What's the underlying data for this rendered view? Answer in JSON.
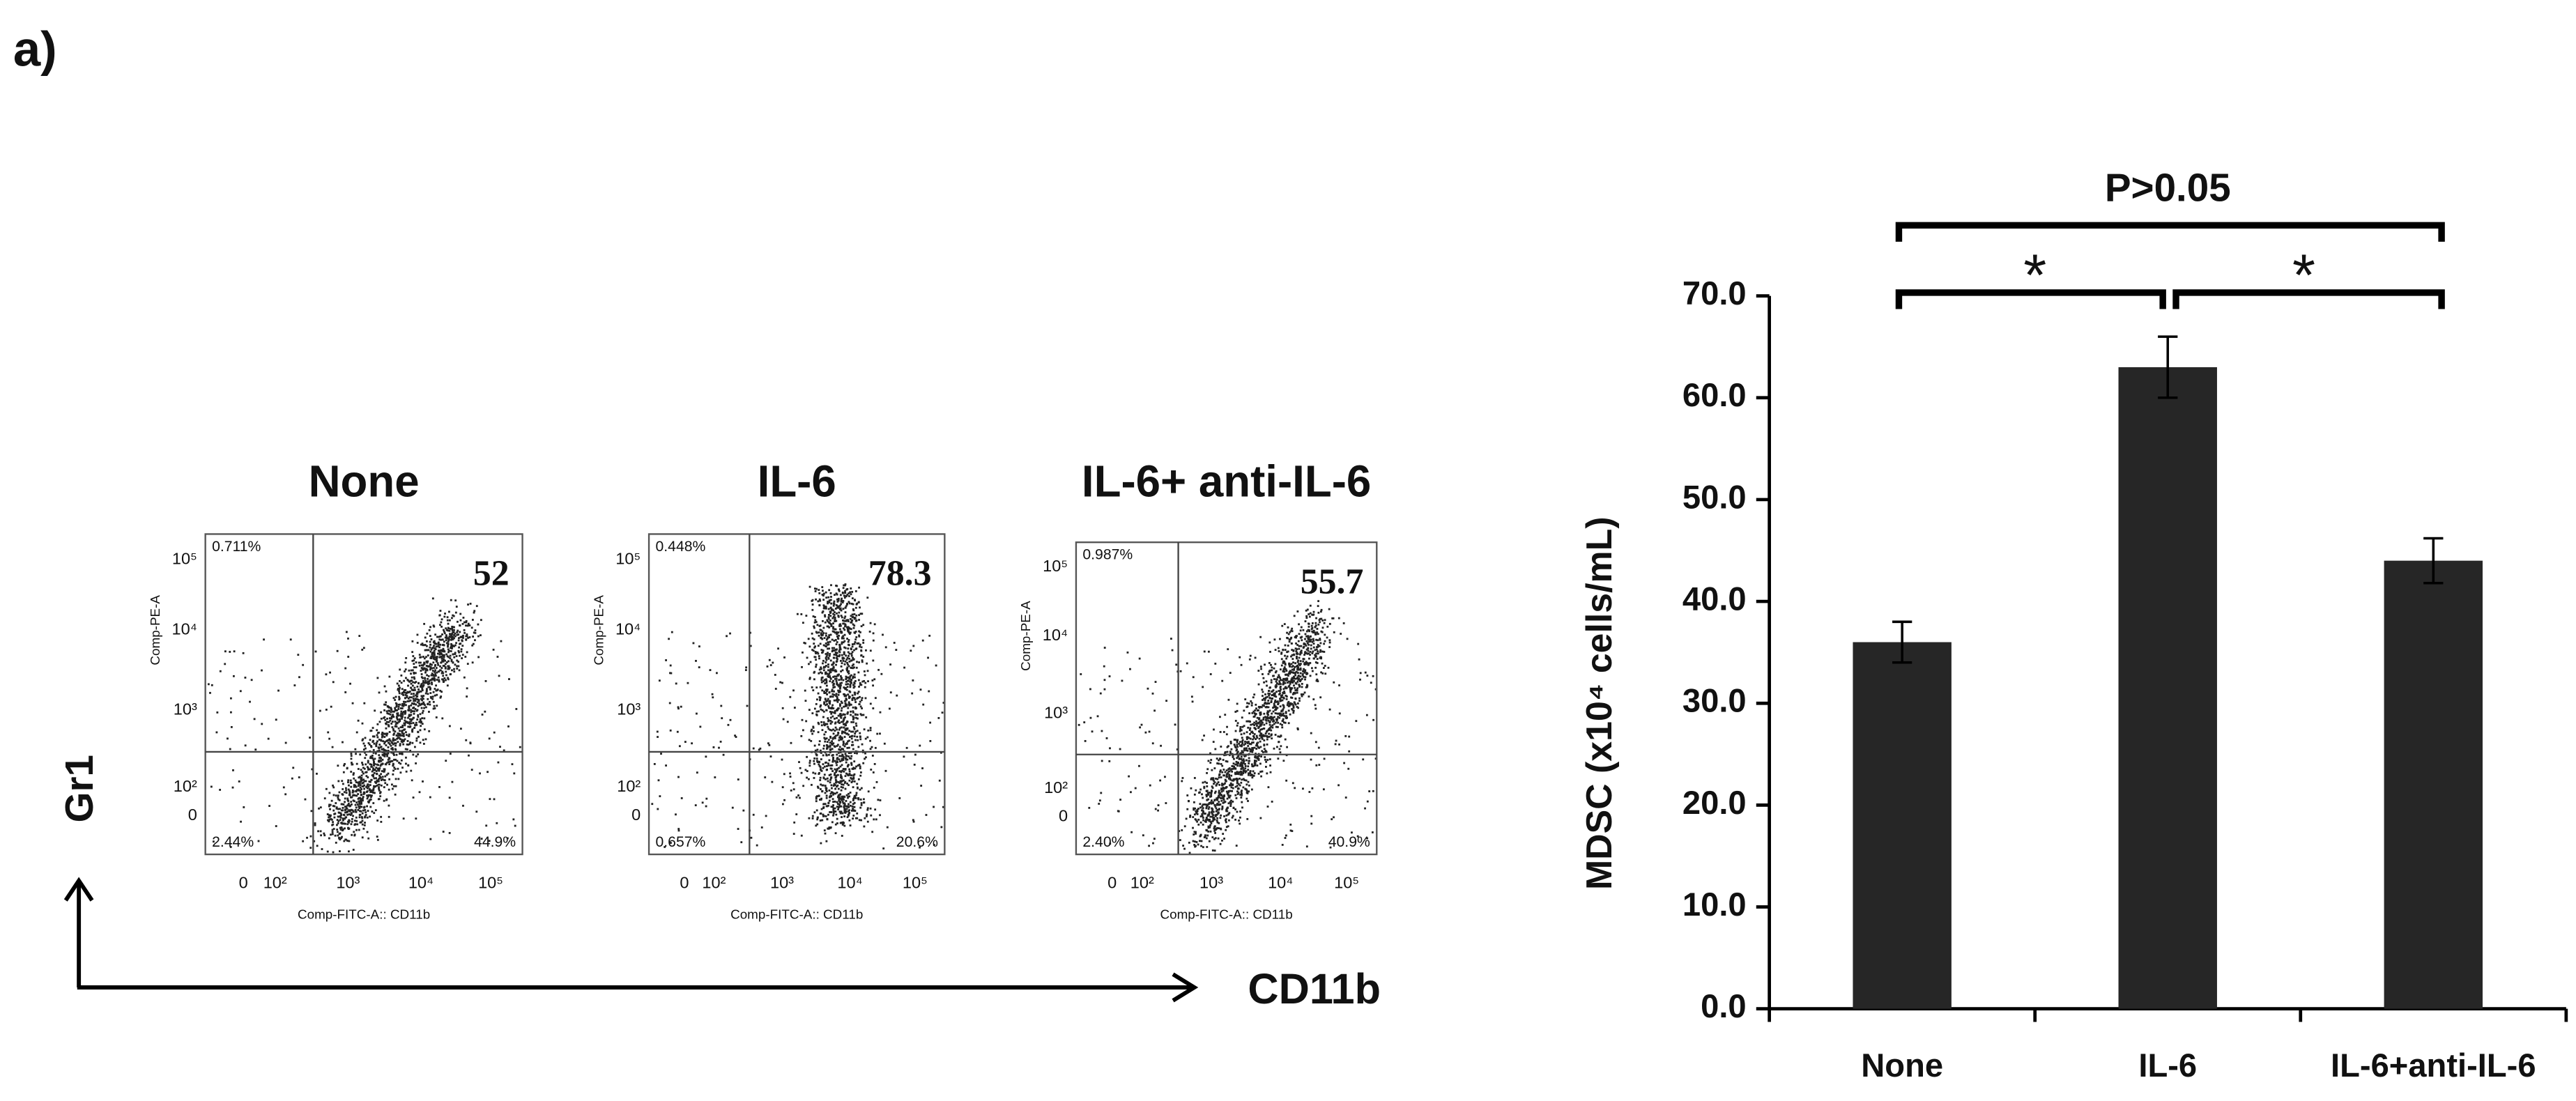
{
  "panel_label": "a)",
  "flow_axes": {
    "y_label": "Comp-PE-A",
    "x_label": "Comp-FITC-A:: CD11b",
    "yticks": [
      "10⁵",
      "10⁴",
      "10³",
      "10²",
      "0"
    ],
    "xticks": [
      "0",
      "10²",
      "10³",
      "10⁴",
      "10⁵"
    ]
  },
  "flow_plots": [
    {
      "title": "None",
      "gate_value": 52,
      "top_left": "0.711%",
      "bottom_left": "2.44%",
      "bottom_right": "44.9%"
    },
    {
      "title": "IL-6",
      "gate_value": 78.3,
      "top_left": "0.448%",
      "bottom_left": "0.657%",
      "bottom_right": "20.6%"
    },
    {
      "title": "IL-6+ anti-IL-6",
      "gate_value": 55.7,
      "top_left": "0.987%",
      "bottom_left": "2.40%",
      "bottom_right": "40.9%"
    }
  ],
  "y_marker": "Gr1",
  "x_marker": "CD11b",
  "chart_data": {
    "type": "bar",
    "categories": [
      "None",
      "IL-6",
      "IL-6+anti-IL-6"
    ],
    "values": [
      36,
      63,
      44
    ],
    "errors": [
      2,
      3,
      2.2
    ],
    "color": "#262626",
    "ylabel": "MDSC (x10⁴ cells/mL)",
    "ylim": [
      0,
      70
    ],
    "yticks": [
      {
        "value": 0,
        "label": "0.0"
      },
      {
        "value": 10,
        "label": "10.0"
      },
      {
        "value": 20,
        "label": "20.0"
      },
      {
        "value": 30,
        "label": "30.0"
      },
      {
        "value": 40,
        "label": "40.0"
      },
      {
        "value": 50,
        "label": "50.0"
      },
      {
        "value": 60,
        "label": "60.0"
      },
      {
        "value": 70,
        "label": "70.0"
      }
    ],
    "annotations": {
      "overall": "P>0.05",
      "left": "*",
      "right": "*"
    }
  }
}
